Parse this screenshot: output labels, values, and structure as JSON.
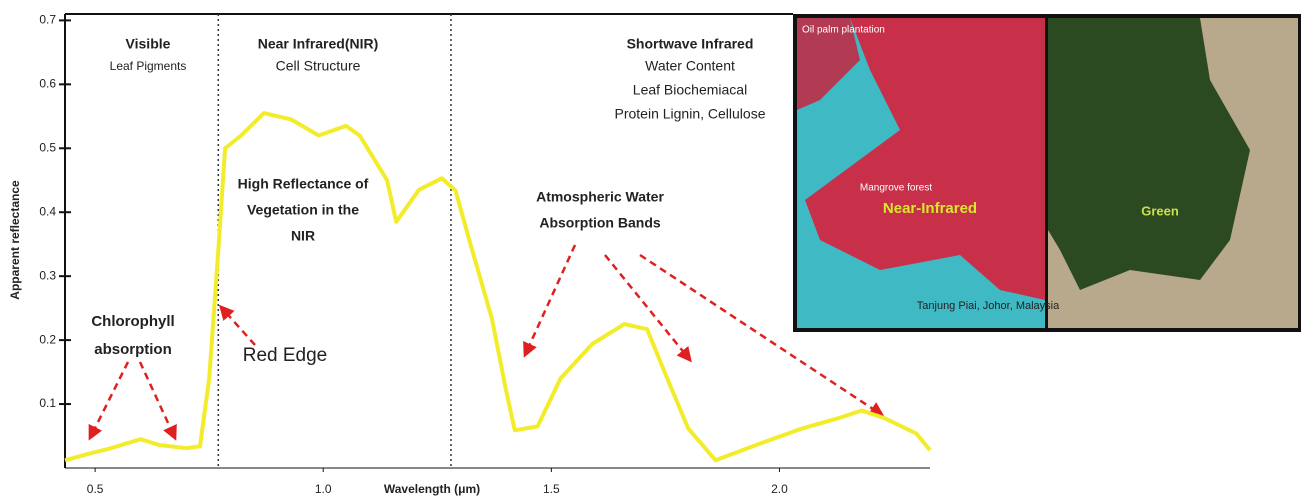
{
  "chart_data": {
    "type": "line",
    "y_label": "Apparent reflectance",
    "x_label": "Wavelength (μm)",
    "x": [
      0.434,
      0.49,
      0.53,
      0.6,
      0.64,
      0.7,
      0.73,
      0.75,
      0.77,
      0.785,
      0.82,
      0.87,
      0.93,
      0.99,
      1.05,
      1.08,
      1.14,
      1.16,
      1.21,
      1.26,
      1.29,
      1.32,
      1.37,
      1.4,
      1.42,
      1.47,
      1.52,
      1.59,
      1.66,
      1.71,
      1.75,
      1.8,
      1.86,
      1.96,
      2.05,
      2.13,
      2.18,
      2.23,
      2.3,
      2.33
    ],
    "values": [
      0.012,
      0.023,
      0.03,
      0.045,
      0.036,
      0.031,
      0.034,
      0.14,
      0.34,
      0.5,
      0.52,
      0.555,
      0.545,
      0.52,
      0.535,
      0.52,
      0.45,
      0.385,
      0.435,
      0.453,
      0.434,
      0.357,
      0.233,
      0.124,
      0.059,
      0.065,
      0.14,
      0.194,
      0.225,
      0.217,
      0.147,
      0.062,
      0.012,
      0.039,
      0.062,
      0.078,
      0.09,
      0.078,
      0.054,
      0.028
    ],
    "color": "#f2ec2a",
    "xlim": [
      0.434,
      2.33
    ],
    "ylim": [
      0,
      0.71
    ],
    "xticks": [
      0.5,
      {
        "value": 1.0,
        "label": "1.0"
      },
      1.5,
      {
        "value": 2.0,
        "label": "2.0"
      }
    ],
    "yticks": [
      0.1,
      0.2,
      0.3,
      0.4,
      0.5,
      0.6,
      0.7
    ],
    "region_bounds": [
      0.77,
      1.28
    ],
    "regions": [
      {
        "title": "Visible",
        "lines": [
          "Leaf Pigments"
        ]
      },
      {
        "title": "Near Infrared(NIR)",
        "lines": [
          "Cell Structure"
        ]
      },
      {
        "title": "Shortwave Infrared",
        "lines": [
          "Water Content",
          "Leaf Biochemiacal",
          "Protein Lignin, Cellulose"
        ]
      }
    ],
    "annotations": [
      {
        "lines": [
          "High Reflectance of",
          "Vegetation in the",
          "NIR"
        ]
      },
      {
        "lines": [
          "Atmospheric Water",
          "Absorption Bands"
        ]
      },
      {
        "lines": [
          "Chlorophyll",
          "absorption"
        ]
      },
      {
        "lines": [
          "Red Edge"
        ]
      }
    ]
  },
  "inset": {
    "labels": [
      "Oil palm plantation",
      "Mangrove forest",
      "Near-Infrared",
      "Green",
      "Tanjung Piai, Johor, Malaysia"
    ]
  }
}
